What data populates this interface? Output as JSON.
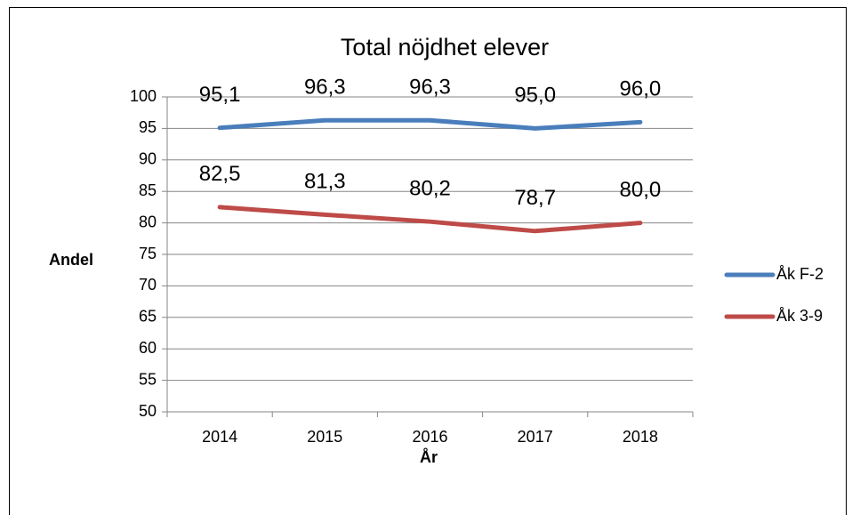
{
  "chart_data": {
    "type": "line",
    "title": "Total nöjdhet elever",
    "x_label": "År",
    "y_label": "Andel",
    "categories": [
      "2014",
      "2015",
      "2016",
      "2017",
      "2018"
    ],
    "series": [
      {
        "name": "Åk F-2",
        "color": "#4a7ebb",
        "values": [
          95.1,
          96.3,
          96.3,
          95.0,
          96.0
        ],
        "value_labels": [
          "95,1",
          "96,3",
          "96,3",
          "95,0",
          "96,0"
        ]
      },
      {
        "name": "Åk 3-9",
        "color": "#be4b48",
        "values": [
          82.5,
          81.3,
          80.2,
          78.7,
          80.0
        ],
        "value_labels": [
          "82,5",
          "81,3",
          "80,2",
          "78,7",
          "80,0"
        ]
      }
    ],
    "ylim": [
      50,
      100
    ],
    "yticks": [
      50,
      55,
      60,
      65,
      70,
      75,
      80,
      85,
      90,
      95,
      100
    ],
    "grid": true,
    "legend": "right"
  }
}
